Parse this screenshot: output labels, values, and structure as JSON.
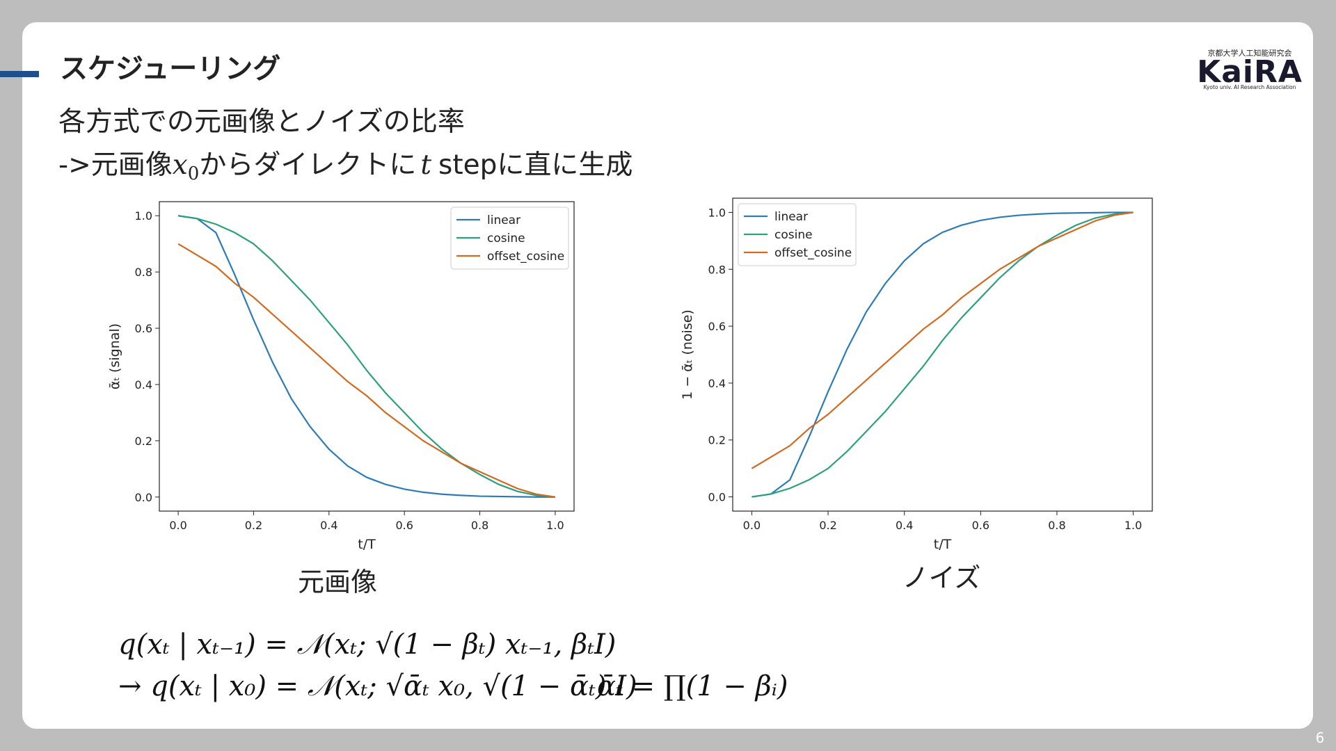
{
  "slide": {
    "title": "スケジューリング",
    "line1": "各方式での元画像とノイズの比率",
    "line2": {
      "prefix": "->元画像",
      "var": "x",
      "sub": "0",
      "middle": "からダイレクトに",
      "t": "t",
      "suffix": "stepに直に生成"
    },
    "caption_left": "元画像",
    "caption_right": "ノイズ",
    "formula1": "q(xₜ | xₜ₋₁) = 𝒩(xₜ; √(1 − βₜ) xₜ₋₁, βₜI)",
    "formula2": "→ q(xₜ | x₀) = 𝒩(xₜ; √ᾱₜ x₀, √(1 − ᾱₜ) I)",
    "formula3": "ᾱₜ = ∏(1 − βᵢ)",
    "logo_top": "京都大学人工知能研究会",
    "logo_main": "KaiRA",
    "logo_bottom": "Kyoto univ. AI Research Association",
    "page_number": "6"
  },
  "chart_data": [
    {
      "type": "line",
      "xlabel": "t/T",
      "ylabel": "ᾱₜ (signal)",
      "legend": "upper right",
      "xlim": [
        -0.05,
        1.05
      ],
      "ylim": [
        -0.05,
        1.05
      ],
      "xticks": [
        {
          "value": 0,
          "label": "0.0"
        },
        0.2,
        0.4,
        0.6,
        0.8,
        {
          "value": 1,
          "label": "1.0"
        }
      ],
      "yticks": [
        {
          "value": 0,
          "label": "0.0"
        },
        0.2,
        0.4,
        0.6,
        0.8,
        {
          "value": 1,
          "label": "1.0"
        }
      ],
      "x": [
        0,
        0.05,
        0.1,
        0.15,
        0.2,
        0.25,
        0.3,
        0.35,
        0.4,
        0.45,
        0.5,
        0.55,
        0.6,
        0.65,
        0.7,
        0.75,
        0.8,
        0.85,
        0.9,
        0.95,
        1
      ],
      "series": [
        {
          "name": "linear",
          "color": "#2c7bb6",
          "values": [
            1.0,
            0.99,
            0.94,
            0.79,
            0.63,
            0.48,
            0.35,
            0.25,
            0.17,
            0.11,
            0.07,
            0.045,
            0.028,
            0.017,
            0.01,
            0.006,
            0.003,
            0.002,
            0.001,
            0.0,
            0.0
          ]
        },
        {
          "name": "cosine",
          "color": "#2ca07a",
          "values": [
            1.0,
            0.99,
            0.97,
            0.94,
            0.9,
            0.84,
            0.77,
            0.7,
            0.62,
            0.54,
            0.45,
            0.37,
            0.3,
            0.23,
            0.17,
            0.12,
            0.08,
            0.045,
            0.02,
            0.006,
            0.0
          ]
        },
        {
          "name": "offset_cosine",
          "color": "#d2691e",
          "values": [
            0.9,
            0.86,
            0.82,
            0.76,
            0.71,
            0.65,
            0.59,
            0.53,
            0.47,
            0.41,
            0.36,
            0.3,
            0.25,
            0.2,
            0.16,
            0.12,
            0.09,
            0.06,
            0.03,
            0.01,
            0.0
          ]
        }
      ]
    },
    {
      "type": "line",
      "xlabel": "t/T",
      "ylabel": "1 − ᾱₜ (noise)",
      "legend": "upper left",
      "xlim": [
        -0.05,
        1.05
      ],
      "ylim": [
        -0.05,
        1.05
      ],
      "xticks": [
        {
          "value": 0,
          "label": "0.0"
        },
        0.2,
        0.4,
        0.6,
        0.8,
        {
          "value": 1,
          "label": "1.0"
        }
      ],
      "yticks": [
        {
          "value": 0,
          "label": "0.0"
        },
        0.2,
        0.4,
        0.6,
        0.8,
        {
          "value": 1,
          "label": "1.0"
        }
      ],
      "x": [
        0,
        0.05,
        0.1,
        0.15,
        0.2,
        0.25,
        0.3,
        0.35,
        0.4,
        0.45,
        0.5,
        0.55,
        0.6,
        0.65,
        0.7,
        0.75,
        0.8,
        0.85,
        0.9,
        0.95,
        1
      ],
      "series": [
        {
          "name": "linear",
          "color": "#2c7bb6",
          "values": [
            0.0,
            0.01,
            0.06,
            0.21,
            0.37,
            0.52,
            0.65,
            0.75,
            0.83,
            0.89,
            0.93,
            0.955,
            0.972,
            0.983,
            0.99,
            0.994,
            0.997,
            0.998,
            0.999,
            1.0,
            1.0
          ]
        },
        {
          "name": "cosine",
          "color": "#2ca07a",
          "values": [
            0.0,
            0.01,
            0.03,
            0.06,
            0.1,
            0.16,
            0.23,
            0.3,
            0.38,
            0.46,
            0.55,
            0.63,
            0.7,
            0.77,
            0.83,
            0.88,
            0.92,
            0.955,
            0.98,
            0.994,
            1.0
          ]
        },
        {
          "name": "offset_cosine",
          "color": "#d2691e",
          "values": [
            0.1,
            0.14,
            0.18,
            0.24,
            0.29,
            0.35,
            0.41,
            0.47,
            0.53,
            0.59,
            0.64,
            0.7,
            0.75,
            0.8,
            0.84,
            0.88,
            0.91,
            0.94,
            0.97,
            0.99,
            1.0
          ]
        }
      ]
    }
  ]
}
